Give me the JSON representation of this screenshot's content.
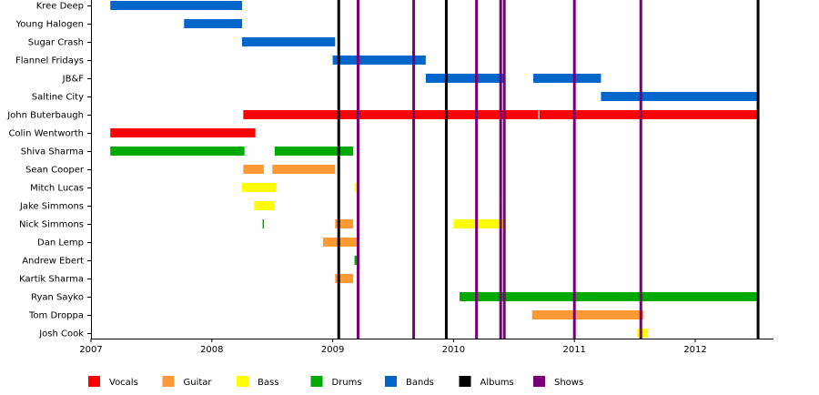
{
  "chart_data": {
    "type": "timeline",
    "title": "",
    "xlabel": "",
    "ylabel": "",
    "xlim": [
      2007.0,
      2012.65
    ],
    "x_ticks": [
      2007,
      2008,
      2009,
      2010,
      2011,
      2012
    ],
    "x_tick_labels": [
      "2007",
      "2008",
      "2009",
      "2010",
      "2011",
      "2012"
    ],
    "rows": [
      "Kree Deep",
      "Young Halogen",
      "Sugar Crash",
      "Flannel Fridays",
      "JB&F",
      "Saltine City",
      "John Buterbaugh",
      "Colin Wentworth",
      "Shiva Sharma",
      "Sean Cooper",
      "Mitch Lucas",
      "Jake Simmons",
      "Nick Simmons",
      "Dan Lemp",
      "Andrew Ebert",
      "Kartik Sharma",
      "Ryan Sayko",
      "Tom Droppa",
      "Josh Cook"
    ],
    "categories": {
      "vocals": {
        "label": "Vocals",
        "color": "#ff0000"
      },
      "guitar": {
        "label": "Guitar",
        "color": "#ff9933"
      },
      "bass": {
        "label": "Bass",
        "color": "#ffff00"
      },
      "drums": {
        "label": "Drums",
        "color": "#00aa00"
      },
      "bands": {
        "label": "Bands",
        "color": "#0066cc"
      },
      "albums": {
        "label": "Albums",
        "color": "#000000"
      },
      "shows": {
        "label": "Shows",
        "color": "#770077"
      }
    },
    "legend_order": [
      "vocals",
      "guitar",
      "bass",
      "drums",
      "bands",
      "albums",
      "shows"
    ],
    "legend_position": "bottom",
    "bars": [
      {
        "row": "Kree Deep",
        "category": "bands",
        "start": 2007.16,
        "end": 2008.25
      },
      {
        "row": "Young Halogen",
        "category": "bands",
        "start": 2007.77,
        "end": 2008.25
      },
      {
        "row": "Sugar Crash",
        "category": "bands",
        "start": 2008.25,
        "end": 2009.02
      },
      {
        "row": "Flannel Fridays",
        "category": "bands",
        "start": 2009.0,
        "end": 2009.77
      },
      {
        "row": "JB&F",
        "category": "bands",
        "start": 2009.77,
        "end": 2010.42
      },
      {
        "row": "JB&F",
        "category": "bands",
        "start": 2010.66,
        "end": 2010.72
      },
      {
        "row": "JB&F",
        "category": "bands",
        "start": 2010.72,
        "end": 2011.22
      },
      {
        "row": "Saltine City",
        "category": "bands",
        "start": 2011.22,
        "end": 2012.52
      },
      {
        "row": "John Buterbaugh",
        "category": "vocals",
        "start": 2008.26,
        "end": 2010.7
      },
      {
        "row": "John Buterbaugh",
        "category": "vocals",
        "start": 2010.71,
        "end": 2012.52
      },
      {
        "row": "Colin Wentworth",
        "category": "vocals",
        "start": 2007.16,
        "end": 2008.36
      },
      {
        "row": "Shiva Sharma",
        "category": "drums",
        "start": 2007.16,
        "end": 2008.27
      },
      {
        "row": "Shiva Sharma",
        "category": "drums",
        "start": 2008.52,
        "end": 2009.17
      },
      {
        "row": "Sean Cooper",
        "category": "guitar",
        "start": 2008.26,
        "end": 2008.43
      },
      {
        "row": "Sean Cooper",
        "category": "guitar",
        "start": 2008.5,
        "end": 2009.02
      },
      {
        "row": "Mitch Lucas",
        "category": "bass",
        "start": 2008.25,
        "end": 2008.53
      },
      {
        "row": "Mitch Lucas",
        "category": "bass",
        "start": 2009.18,
        "end": 2009.21
      },
      {
        "row": "Jake Simmons",
        "category": "bass",
        "start": 2008.35,
        "end": 2008.52
      },
      {
        "row": "Jake Simmons",
        "category": "bass",
        "start": 2010.41,
        "end": 2010.42
      },
      {
        "row": "Nick Simmons",
        "category": "drums",
        "start": 2008.42,
        "end": 2008.43
      },
      {
        "row": "Nick Simmons",
        "category": "guitar",
        "start": 2009.02,
        "end": 2009.17
      },
      {
        "row": "Nick Simmons",
        "category": "bass",
        "start": 2010.0,
        "end": 2010.41
      },
      {
        "row": "Dan Lemp",
        "category": "guitar",
        "start": 2008.92,
        "end": 2009.22
      },
      {
        "row": "Andrew Ebert",
        "category": "drums",
        "start": 2009.18,
        "end": 2009.21
      },
      {
        "row": "Kartik Sharma",
        "category": "guitar",
        "start": 2009.02,
        "end": 2009.17
      },
      {
        "row": "Ryan Sayko",
        "category": "drums",
        "start": 2010.05,
        "end": 2012.52
      },
      {
        "row": "Tom Droppa",
        "category": "guitar",
        "start": 2010.65,
        "end": 2011.57
      },
      {
        "row": "Josh Cook",
        "category": "bass",
        "start": 2011.52,
        "end": 2011.61
      }
    ],
    "events": [
      {
        "category": "albums",
        "x": 2009.05
      },
      {
        "category": "shows",
        "x": 2009.21
      },
      {
        "category": "shows",
        "x": 2009.67
      },
      {
        "category": "albums",
        "x": 2009.94
      },
      {
        "category": "shows",
        "x": 2010.19
      },
      {
        "category": "shows",
        "x": 2010.39
      },
      {
        "category": "shows",
        "x": 2010.42
      },
      {
        "category": "shows",
        "x": 2011.0
      },
      {
        "category": "shows",
        "x": 2011.55
      },
      {
        "category": "albums",
        "x": 2012.52
      }
    ]
  }
}
